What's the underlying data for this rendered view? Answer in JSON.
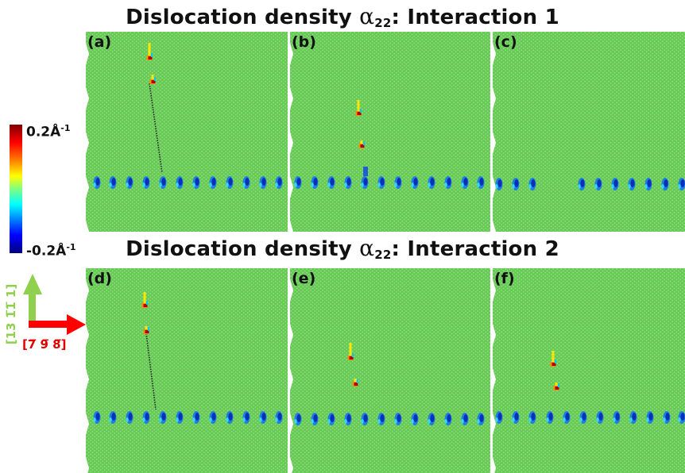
{
  "titles": {
    "row1": {
      "prefix": "Dislocation density ",
      "symbol": "α",
      "sub": "22",
      "suffix": ": Interaction 1"
    },
    "row2": {
      "prefix": "Dislocation density ",
      "symbol": "α",
      "sub": "22",
      "suffix": ": Interaction 2"
    }
  },
  "colorbar": {
    "max_label": "0.2Å",
    "min_label": "-0.2Å",
    "exponent": "-1",
    "colormap": "jet",
    "range": [
      -0.2,
      0.2
    ]
  },
  "axes": {
    "vertical_label": "[13 1̅1̅ 1]",
    "horizontal_label": "[7̅ 9̅ 8̅]",
    "vertical_color": "#8fd14f",
    "horizontal_color": "#ff0000"
  },
  "colors": {
    "background_atoms": "#67c857",
    "atom_dots": "#8ee27a"
  },
  "panels": [
    {
      "label": "(a)"
    },
    {
      "label": "(b)"
    },
    {
      "label": "(c)"
    },
    {
      "label": "(d)"
    },
    {
      "label": "(e)"
    },
    {
      "label": "(f)"
    }
  ]
}
